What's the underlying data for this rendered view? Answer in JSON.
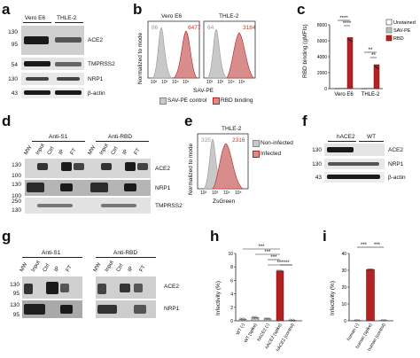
{
  "panel_labels": [
    "a",
    "b",
    "c",
    "d",
    "e",
    "f",
    "g",
    "h",
    "i"
  ],
  "panel_a": {
    "groups": [
      "Vero E6",
      "THLE-2"
    ],
    "markers": [
      "130",
      "95",
      "54",
      "130",
      "43"
    ],
    "proteins": [
      "ACE2",
      "TMPRSS2",
      "NRP1",
      "β-actin"
    ]
  },
  "panel_b": {
    "titles": [
      "Vero E6",
      "THLE-2"
    ],
    "ylabel": "Normalized to mode",
    "xlabel": "SAV-PE",
    "values_grey": [
      "86",
      "64"
    ],
    "values_red": [
      "6477",
      "3184"
    ],
    "ticks": [
      "10²",
      "10³",
      "10⁴",
      "10⁵"
    ],
    "legend": [
      "SAV-PE control",
      "RBD binding"
    ],
    "colors": {
      "control": "#c8c8c8",
      "rbd": "#d98c8c",
      "rbd_edge": "#b22222"
    }
  },
  "panel_c": {
    "ylabel": "RBD binding (gMFIs)",
    "yticks": [
      "0",
      "2000",
      "4000",
      "6000",
      "8000"
    ],
    "groups": [
      "Vero E6",
      "THLE-2"
    ],
    "legend": [
      "Unstained",
      "SAV-PE",
      "RBD"
    ],
    "sig": [
      "****",
      "****",
      "**",
      "**"
    ]
  },
  "panel_d": {
    "groups": [
      "Anti-S1",
      "Anti-RBD"
    ],
    "lanes": [
      "MW",
      "Input",
      "Ctrl",
      "IP",
      "FT",
      "MW",
      "Input",
      "Ctrl",
      "IP",
      "FT"
    ],
    "markers": [
      "130",
      "100",
      "130",
      "100",
      "250",
      "130"
    ],
    "proteins": [
      "ACE2",
      "NRP1",
      "TMPRSS2"
    ]
  },
  "panel_e": {
    "title": "THLE-2",
    "ylabel": "Normalized to mode",
    "xlabel": "ZsGreen",
    "value_grey": "325",
    "value_red": "2316",
    "ticks": [
      "10²",
      "10³",
      "10⁴",
      "10⁵"
    ],
    "legend": [
      "Non-infected",
      "Infected"
    ]
  },
  "panel_f": {
    "groups": [
      "hACE2",
      "WT"
    ],
    "markers": [
      "130",
      "130",
      "43"
    ],
    "proteins": [
      "ACE2",
      "NRP1",
      "β-actin"
    ]
  },
  "panel_g": {
    "groups": [
      "Anti-S1",
      "Anti-RBD"
    ],
    "lanes": [
      "MW",
      "Input",
      "Ctrl",
      "IP",
      "FT",
      "MW",
      "Input",
      "Ctrl",
      "IP",
      "FT"
    ],
    "markers": [
      "130",
      "95",
      "130",
      "95"
    ],
    "proteins": [
      "ACE2",
      "NRP1"
    ]
  },
  "panel_h": {
    "ylabel": "Infectivity (%)",
    "yticks": [
      "0",
      "2",
      "4",
      "6",
      "8",
      "10"
    ],
    "categories": [
      "WT (-)",
      "WT (spike)",
      "hACE2 (-)",
      "hACE2 (spike)",
      "hACE2 (control)"
    ],
    "sig": [
      "***",
      "***",
      "***",
      "***",
      "***"
    ]
  },
  "panel_i": {
    "ylabel": "Infectivity (%)",
    "yticks": [
      "0",
      "10",
      "20",
      "30",
      "40"
    ],
    "categories": [
      "human (-)",
      "human (spike)",
      "human (control)"
    ],
    "sig": [
      "***",
      "***"
    ]
  },
  "chart_data": [
    {
      "type": "bar",
      "panel": "c",
      "ylabel": "RBD binding (gMFIs)",
      "ylim": [
        0,
        8000
      ],
      "categories": [
        "Vero E6",
        "THLE-2"
      ],
      "series": [
        {
          "name": "Unstained",
          "values": [
            40,
            30
          ]
        },
        {
          "name": "SAV-PE",
          "values": [
            80,
            60
          ]
        },
        {
          "name": "RBD",
          "values": [
            6400,
            3000
          ]
        }
      ]
    },
    {
      "type": "bar",
      "panel": "h",
      "ylabel": "Infectivity (%)",
      "ylim": [
        0,
        10
      ],
      "categories": [
        "WT (-)",
        "WT (spike)",
        "hACE2 (-)",
        "hACE2 (spike)",
        "hACE2 (control)"
      ],
      "values": [
        0.25,
        0.5,
        0.3,
        7.4,
        0.1
      ]
    },
    {
      "type": "bar",
      "panel": "i",
      "ylabel": "Infectivity (%)",
      "ylim": [
        0,
        40
      ],
      "categories": [
        "human (-)",
        "human (spike)",
        "human (control)"
      ],
      "values": [
        0.3,
        30.5,
        0.3
      ]
    }
  ]
}
